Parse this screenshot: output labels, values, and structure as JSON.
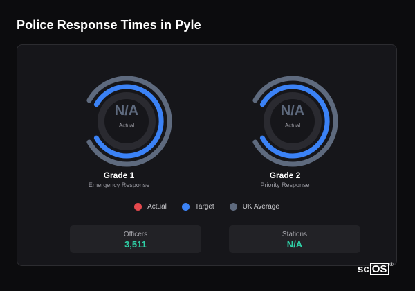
{
  "page": {
    "title": "Police Response Times in Pyle"
  },
  "grades": [
    {
      "title": "Grade 1",
      "subtitle": "Emergency Response",
      "value": "N/A",
      "value_label": "Actual"
    },
    {
      "title": "Grade 2",
      "subtitle": "Priority Response",
      "value": "N/A",
      "value_label": "Actual"
    }
  ],
  "legend": [
    {
      "label": "Actual",
      "color": "#e5484d"
    },
    {
      "label": "Target",
      "color": "#3b82f6"
    },
    {
      "label": "UK Average",
      "color": "#5e6a7e"
    }
  ],
  "stats": [
    {
      "label": "Officers",
      "value": "3,511"
    },
    {
      "label": "Stations",
      "value": "N/A"
    }
  ],
  "brand": {
    "prefix": "sc",
    "boxed": "OS",
    "mark": "®"
  },
  "colors": {
    "accent": "#2fd1a7",
    "target": "#3b82f6",
    "uk_average": "#5e6a7e",
    "actual": "#e5484d"
  }
}
